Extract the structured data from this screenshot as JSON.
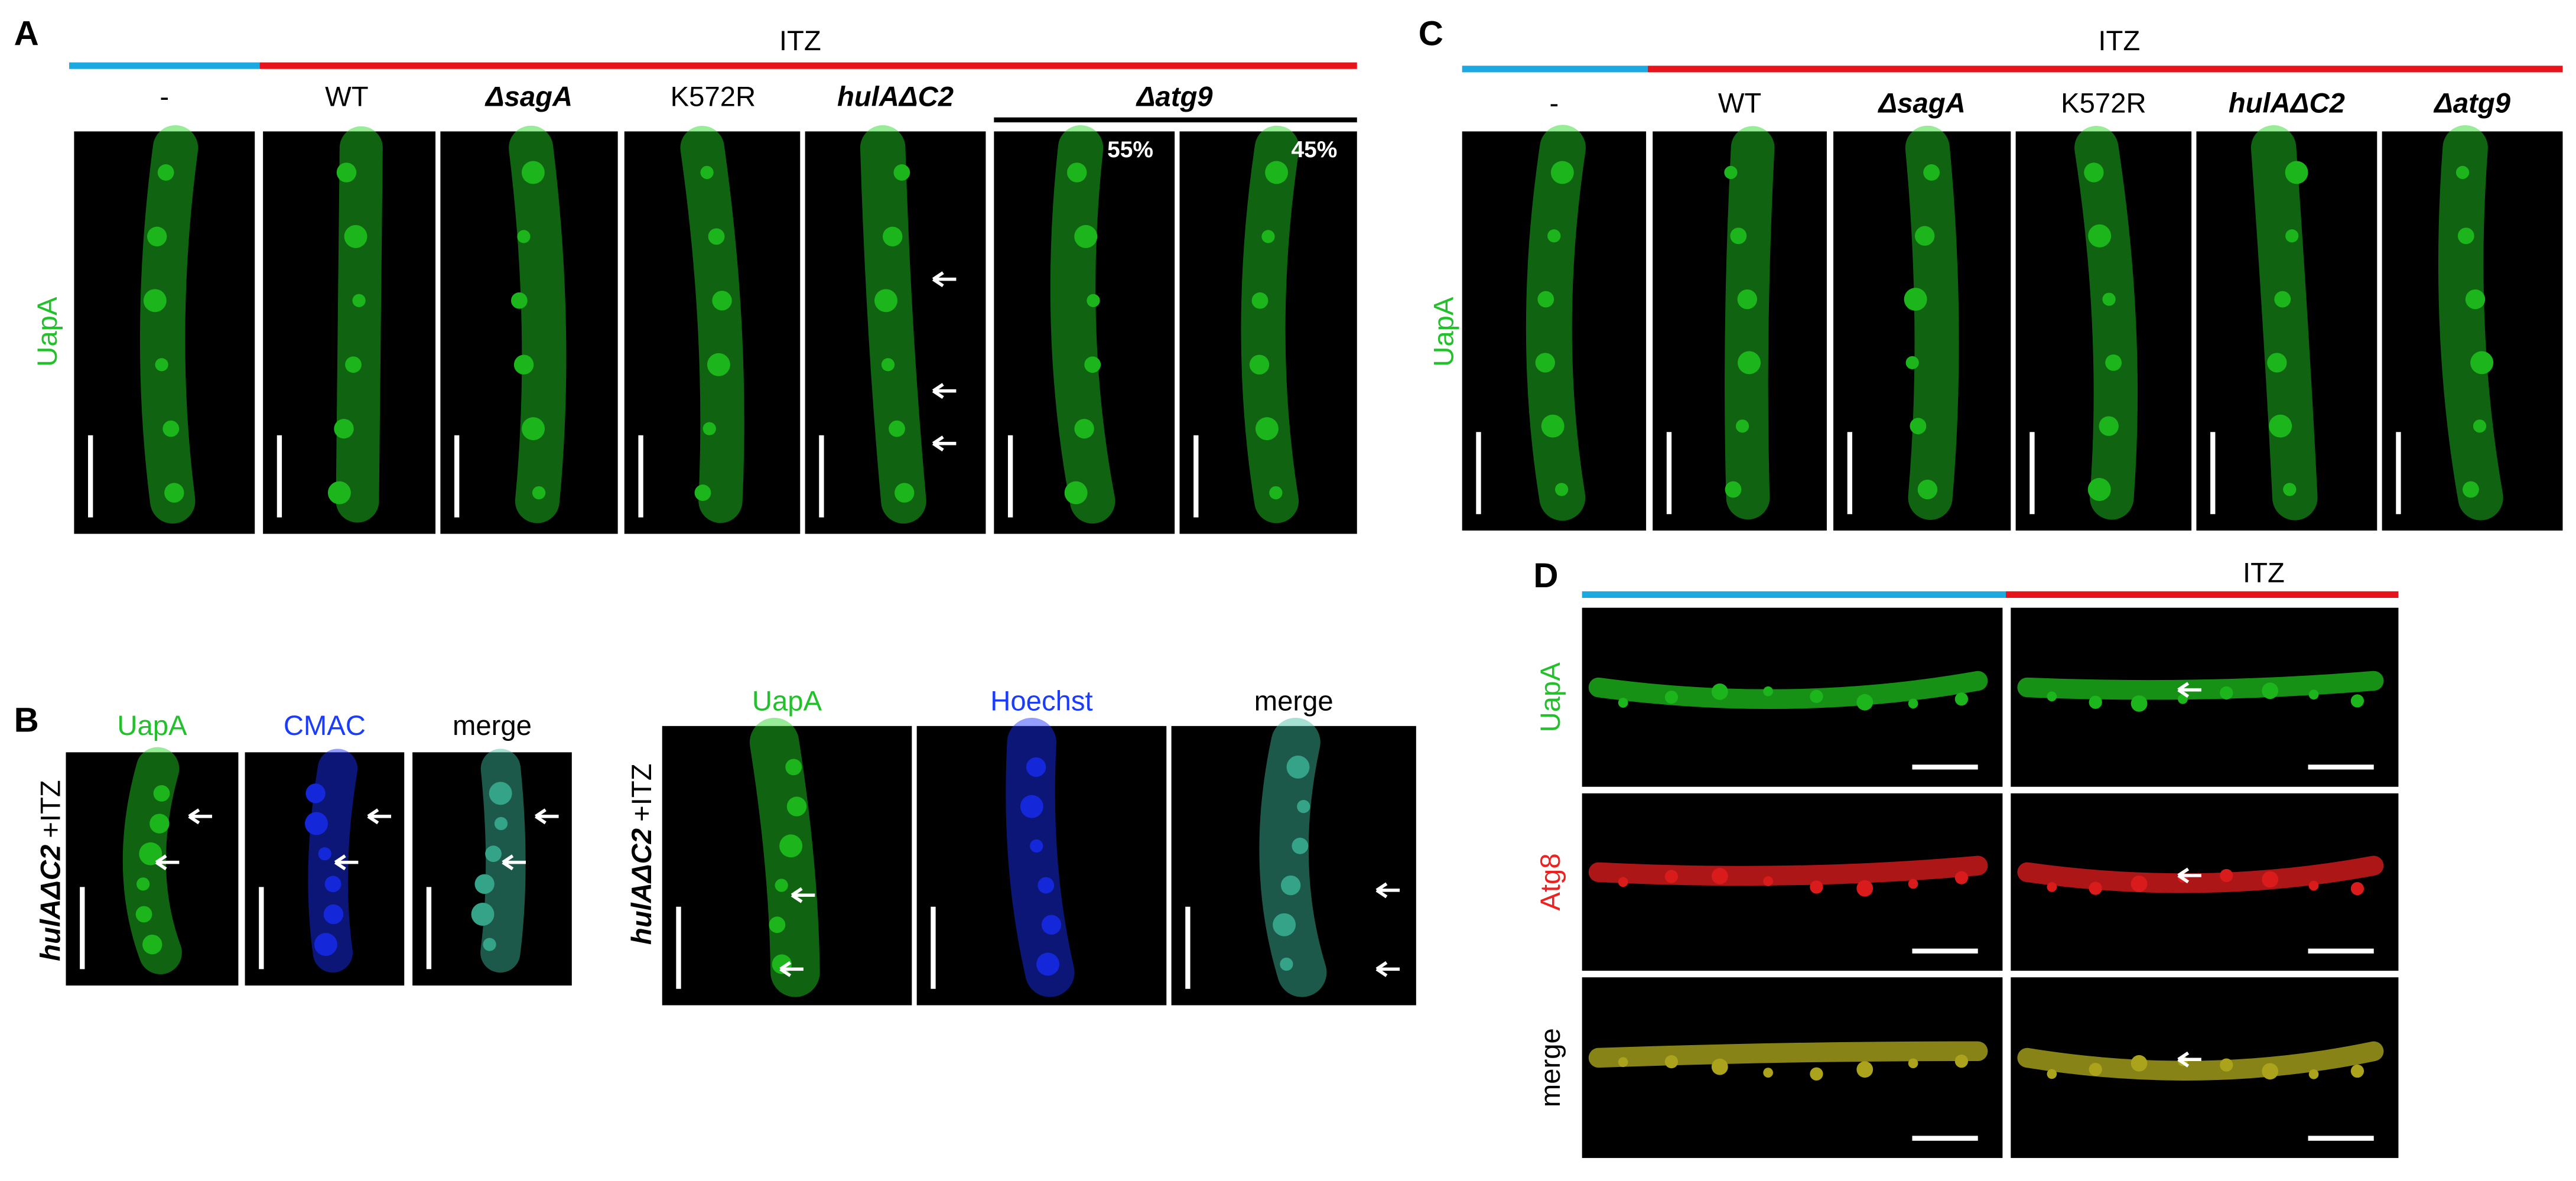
{
  "panel_a": {
    "label": "A",
    "treatment": "ITZ",
    "row_label": "UapA",
    "columns": [
      "-",
      "WT",
      "ΔsagA",
      "K572R",
      "hulAΔC2",
      "Δatg9"
    ],
    "percentages": [
      "55%",
      "45%"
    ]
  },
  "panel_b": {
    "label": "B",
    "left": {
      "genotype": "hulAΔC2",
      "treatment": "+ITZ",
      "columns": [
        "UapA",
        "CMAC",
        "merge"
      ]
    },
    "right": {
      "genotype": "hulAΔC2",
      "treatment": "+ITZ",
      "columns": [
        "UapA",
        "Hoechst",
        "merge"
      ]
    }
  },
  "panel_c": {
    "label": "C",
    "treatment": "ITZ",
    "row_label": "UapA",
    "columns": [
      "-",
      "WT",
      "ΔsagA",
      "K572R",
      "hulAΔC2",
      "Δatg9"
    ]
  },
  "panel_d": {
    "label": "D",
    "treatment": "ITZ",
    "rows": [
      "UapA",
      "Atg8",
      "merge"
    ]
  }
}
